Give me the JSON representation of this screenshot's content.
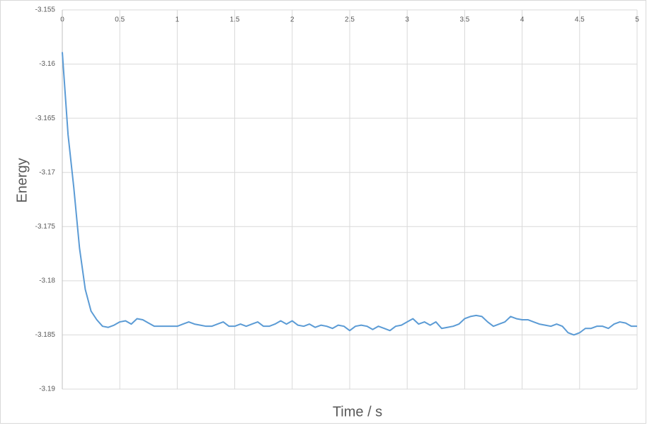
{
  "chart_data": {
    "type": "line",
    "x_label": "Time / s",
    "y_label": "Energy",
    "color": "#5b9bd5",
    "grid": true,
    "xlim": [
      0,
      5
    ],
    "ylim": [
      -3.19,
      -3.155
    ],
    "xticks": [
      0,
      0.5,
      1,
      1.5,
      2,
      2.5,
      3,
      3.5,
      4,
      4.5,
      5
    ],
    "yticks": [
      -3.155,
      -3.16,
      -3.165,
      -3.17,
      -3.175,
      -3.18,
      -3.185,
      -3.19
    ],
    "x": [
      0,
      0.05,
      0.1,
      0.15,
      0.2,
      0.25,
      0.3,
      0.35,
      0.4,
      0.45,
      0.5,
      0.55,
      0.6,
      0.65,
      0.7,
      0.75,
      0.8,
      0.85,
      0.9,
      0.95,
      1,
      1.05,
      1.1,
      1.15,
      1.2,
      1.25,
      1.3,
      1.35,
      1.4,
      1.45,
      1.5,
      1.55,
      1.6,
      1.65,
      1.7,
      1.75,
      1.8,
      1.85,
      1.9,
      1.95,
      2,
      2.05,
      2.1,
      2.15,
      2.2,
      2.25,
      2.3,
      2.35,
      2.4,
      2.45,
      2.5,
      2.55,
      2.6,
      2.65,
      2.7,
      2.75,
      2.8,
      2.85,
      2.9,
      2.95,
      3,
      3.05,
      3.1,
      3.15,
      3.2,
      3.25,
      3.3,
      3.35,
      3.4,
      3.45,
      3.5,
      3.55,
      3.6,
      3.65,
      3.7,
      3.75,
      3.8,
      3.85,
      3.9,
      3.95,
      4,
      4.05,
      4.1,
      4.15,
      4.2,
      4.25,
      4.3,
      4.35,
      4.4,
      4.45,
      4.5,
      4.55,
      4.6,
      4.65,
      4.7,
      4.75,
      4.8,
      4.85,
      4.9,
      4.95,
      5
    ],
    "values": [
      -3.1589,
      -3.1665,
      -3.1714,
      -3.177,
      -3.1808,
      -3.1828,
      -3.1836,
      -3.1842,
      -3.1843,
      -3.1841,
      -3.1838,
      -3.1837,
      -3.184,
      -3.1835,
      -3.1836,
      -3.1839,
      -3.1842,
      -3.1842,
      -3.1842,
      -3.1842,
      -3.1842,
      -3.184,
      -3.1838,
      -3.184,
      -3.1841,
      -3.1842,
      -3.1842,
      -3.184,
      -3.1838,
      -3.1842,
      -3.1842,
      -3.184,
      -3.1842,
      -3.184,
      -3.1838,
      -3.1842,
      -3.1842,
      -3.184,
      -3.1837,
      -3.184,
      -3.1837,
      -3.1841,
      -3.1842,
      -3.184,
      -3.1843,
      -3.1841,
      -3.1842,
      -3.1844,
      -3.1841,
      -3.1842,
      -3.1846,
      -3.1842,
      -3.1841,
      -3.1842,
      -3.1845,
      -3.1842,
      -3.1844,
      -3.1846,
      -3.1842,
      -3.1841,
      -3.1838,
      -3.1835,
      -3.184,
      -3.1838,
      -3.1841,
      -3.1838,
      -3.1844,
      -3.1843,
      -3.1842,
      -3.184,
      -3.1835,
      -3.1833,
      -3.1832,
      -3.1833,
      -3.1838,
      -3.1842,
      -3.184,
      -3.1838,
      -3.1833,
      -3.1835,
      -3.1836,
      -3.1836,
      -3.1838,
      -3.184,
      -3.1841,
      -3.1842,
      -3.184,
      -3.1842,
      -3.1848,
      -3.185,
      -3.1848,
      -3.1844,
      -3.1844,
      -3.1842,
      -3.1842,
      -3.1844,
      -3.184,
      -3.1838,
      -3.1839,
      -3.1842,
      -3.1842
    ]
  }
}
